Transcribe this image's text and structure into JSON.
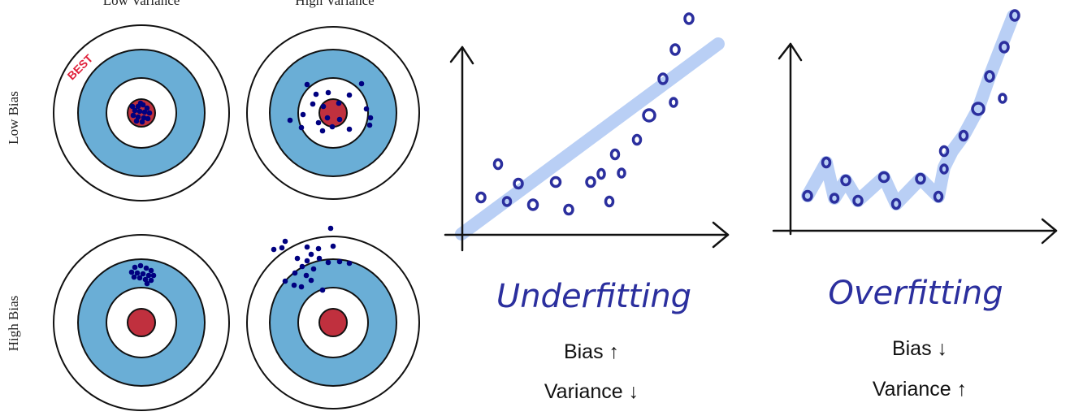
{
  "bias_variance_grid": {
    "columns": [
      "Low Variance",
      "High Variance"
    ],
    "rows": [
      "Low Bias",
      "High Bias"
    ],
    "best_label": "BEST"
  },
  "underfitting": {
    "title": "Underfitting",
    "bias_text": "Bias ↑",
    "variance_text": "Variance ↓"
  },
  "overfitting": {
    "title": "Overfitting",
    "bias_text": "Bias ↓",
    "variance_text": "Variance ↑"
  },
  "colors": {
    "ring_outer": "#ffffff",
    "ring_blue": "#6aaed6",
    "bullseye": "#c0303e",
    "dots": "#000080",
    "fit_line": "#b9cff5",
    "best": "#e0203a",
    "handwriting": "#2b2f9e"
  }
}
